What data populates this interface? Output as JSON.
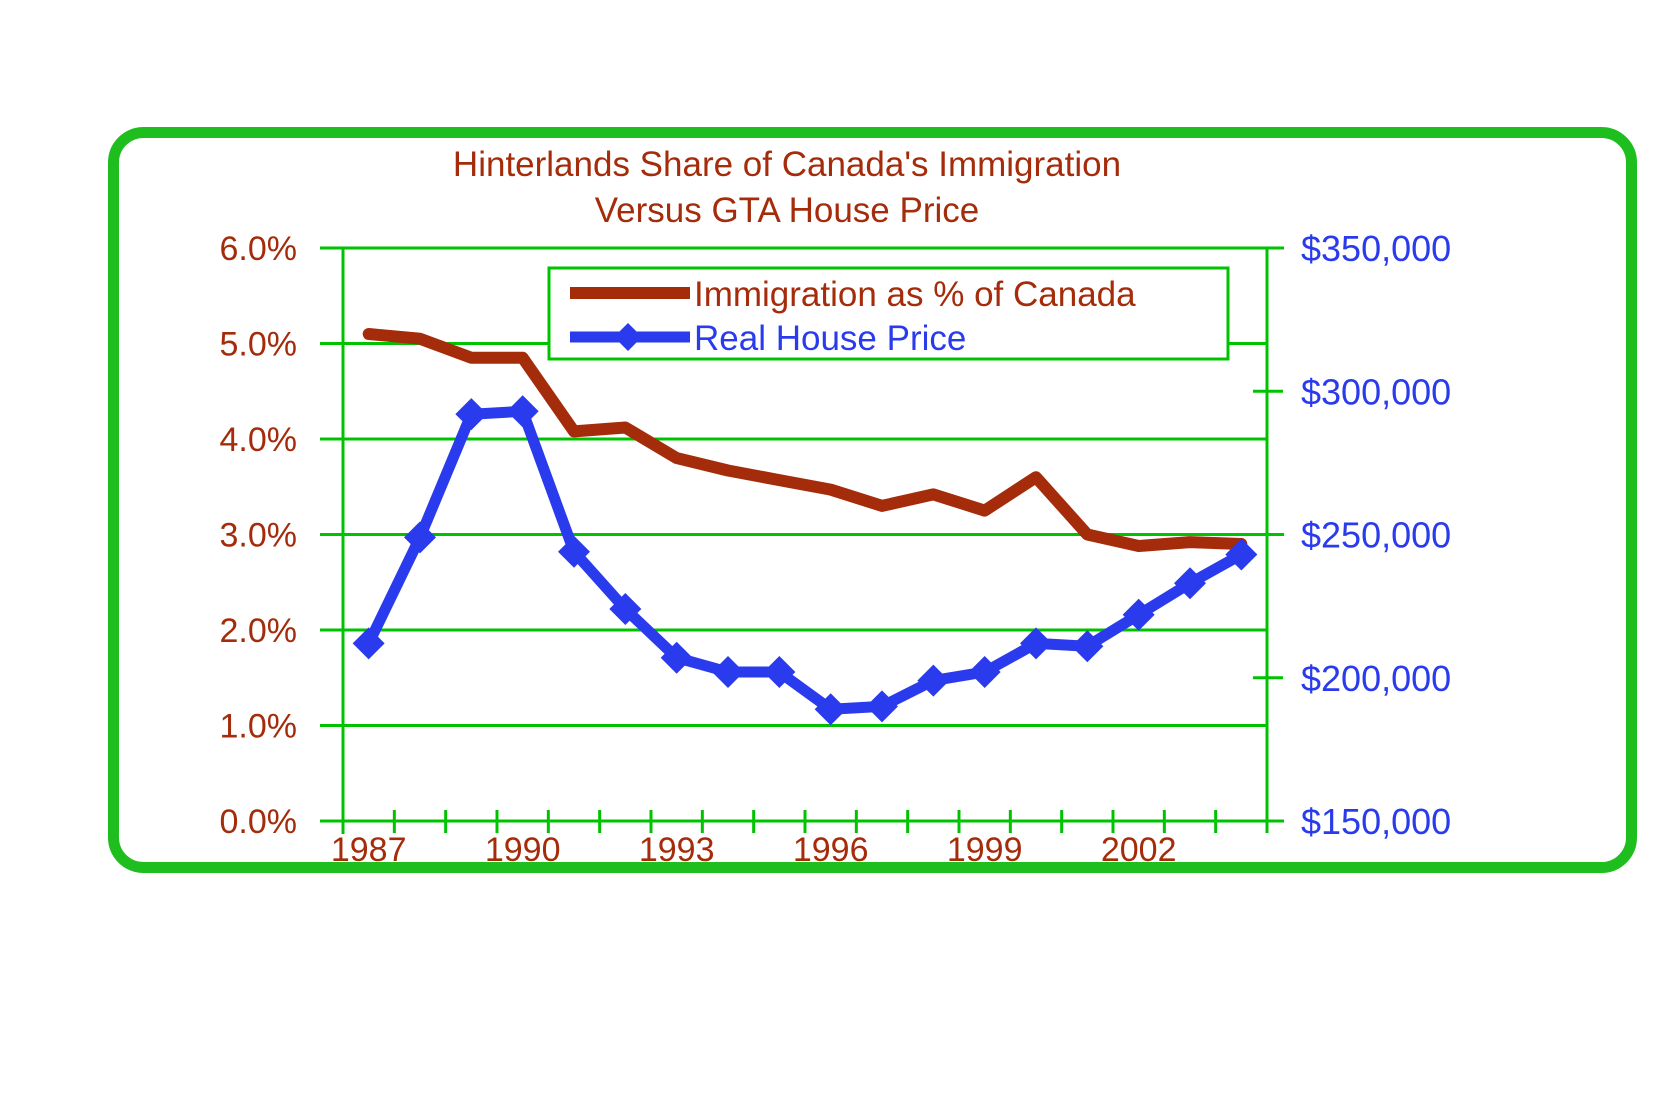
{
  "frame": {
    "border_color": "#1fbe1f",
    "background": "#ffffff"
  },
  "chart_data": {
    "type": "line",
    "title_line1": "Hinterlands Share of Canada's Immigration",
    "title_line2": "Versus GTA House Price",
    "title_color": "#a52c0b",
    "grid_color": "#00c300",
    "legend_border_color": "#00c300",
    "categories": [
      1987,
      1988,
      1989,
      1990,
      1991,
      1992,
      1993,
      1994,
      1995,
      1996,
      1997,
      1998,
      1999,
      2000,
      2001,
      2002,
      2003,
      2004
    ],
    "series": [
      {
        "name": "Immigration as % of Canada",
        "axis": "left",
        "unit": "percent",
        "color": "#a52c0b",
        "line_width": 12,
        "marker": "none",
        "values": [
          5.1,
          5.05,
          4.85,
          4.85,
          4.08,
          4.12,
          3.8,
          3.67,
          3.57,
          3.47,
          3.3,
          3.42,
          3.25,
          3.6,
          3.0,
          2.88,
          2.92,
          2.9
        ]
      },
      {
        "name": "Real House Price",
        "axis": "right",
        "unit": "dollars",
        "color": "#2a3bee",
        "line_width": 11,
        "marker": "diamond",
        "values": [
          212000,
          249000,
          292000,
          293000,
          244000,
          224000,
          207000,
          202000,
          202000,
          189000,
          190000,
          199000,
          202000,
          212000,
          211000,
          222000,
          233000,
          243000
        ]
      }
    ],
    "x_axis": {
      "label_color": "#a52c0b",
      "ticks": [
        {
          "label": "1987",
          "year": 1987
        },
        {
          "label": "1990",
          "year": 1990
        },
        {
          "label": "1993",
          "year": 1993
        },
        {
          "label": "1996",
          "year": 1996
        },
        {
          "label": "1999",
          "year": 1999
        },
        {
          "label": "2002",
          "year": 2002
        }
      ]
    },
    "y_axis_left": {
      "min": 0,
      "max": 6,
      "label_color": "#a52c0b",
      "ticks": [
        {
          "label": "6.0%",
          "value": 6.0
        },
        {
          "label": "5.0%",
          "value": 5.0
        },
        {
          "label": "4.0%",
          "value": 4.0
        },
        {
          "label": "3.0%",
          "value": 3.0
        },
        {
          "label": "2.0%",
          "value": 2.0
        },
        {
          "label": "1.0%",
          "value": 1.0
        },
        {
          "label": "0.0%",
          "value": 0.0
        }
      ]
    },
    "y_axis_right": {
      "min": 150000,
      "max": 350000,
      "label_color": "#2a3bee",
      "ticks": [
        {
          "label": "$350,000",
          "value": 350000
        },
        {
          "label": "$300,000",
          "value": 300000
        },
        {
          "label": "$250,000",
          "value": 250000
        },
        {
          "label": "$200,000",
          "value": 200000
        },
        {
          "label": "$150,000",
          "value": 150000
        }
      ],
      "minor_ticks": [
        300000,
        200000
      ]
    },
    "legend": {
      "position": "top-center-inside",
      "entries": [
        "Immigration as % of Canada",
        "Real House Price"
      ]
    }
  }
}
